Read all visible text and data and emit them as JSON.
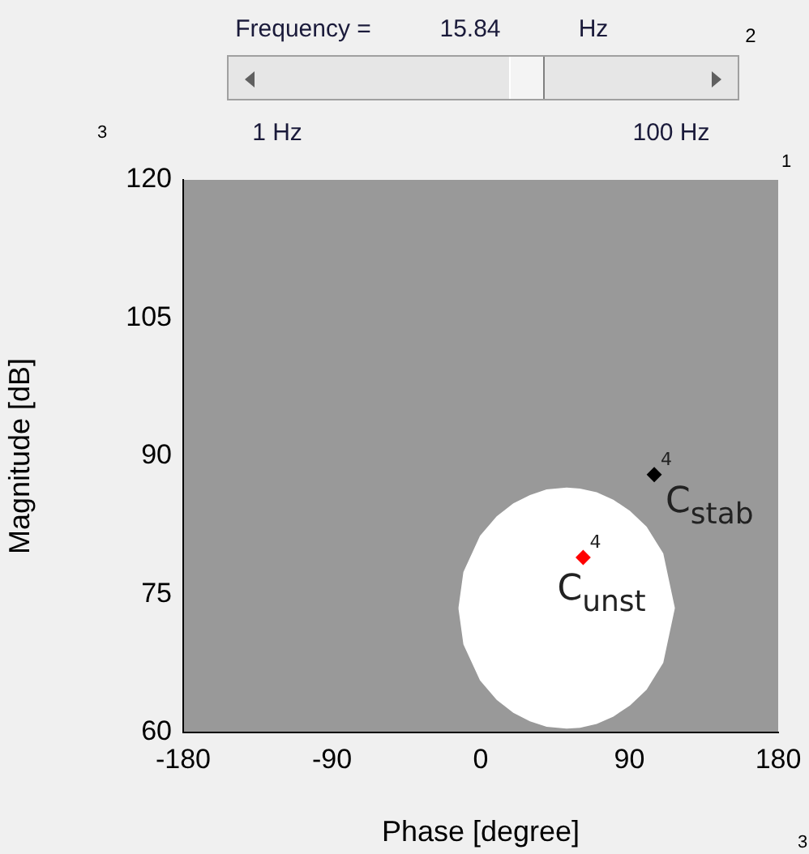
{
  "chart_data": {
    "type": "scatter",
    "xlabel": "Phase [degree]",
    "ylabel": "Magnitude [dB]",
    "xlim": [
      -180,
      180
    ],
    "xticks": [
      -180,
      -90,
      0,
      90,
      180
    ],
    "ylim": [
      60,
      120
    ],
    "yticks": [
      60,
      75,
      90,
      105,
      120
    ],
    "grid": false,
    "legend": false,
    "series": [
      {
        "type": "area",
        "color": "#ffffff",
        "marker": "none",
        "x": [
          -13,
          -10,
          0,
          10,
          20,
          30,
          40,
          52,
          60,
          70,
          80,
          90,
          100,
          110,
          117,
          110,
          100,
          90,
          80,
          70,
          60,
          52,
          40,
          30,
          20,
          10,
          0,
          -10,
          -13
        ],
        "values": [
          73.5,
          77.4,
          81.3,
          83.4,
          84.8,
          85.7,
          86.3,
          86.5,
          86.4,
          86,
          85.2,
          84,
          82.3,
          79.4,
          73.5,
          67.6,
          64.7,
          63,
          61.8,
          61,
          60.6,
          60.5,
          60.7,
          61.3,
          62.2,
          63.6,
          65.7,
          69.6,
          73.5
        ]
      },
      {
        "name": "C$_{stab}$",
        "color": "#000000",
        "marker": "diamond",
        "x": [
          105
        ],
        "values": [
          88
        ]
      },
      {
        "name": "C$_{unst}$",
        "color": "#ff0000",
        "marker": "diamond",
        "x": [
          62
        ],
        "values": [
          79
        ]
      }
    ],
    "annotations": [
      "Frequency =",
      "15.84",
      "Hz",
      "1 Hz",
      "100 Hz",
      "2",
      "3",
      "1",
      "3",
      {
        "text": "4",
        "x": 105,
        "y": 88
      },
      {
        "text": "4",
        "x": 62,
        "y": 79
      }
    ]
  }
}
